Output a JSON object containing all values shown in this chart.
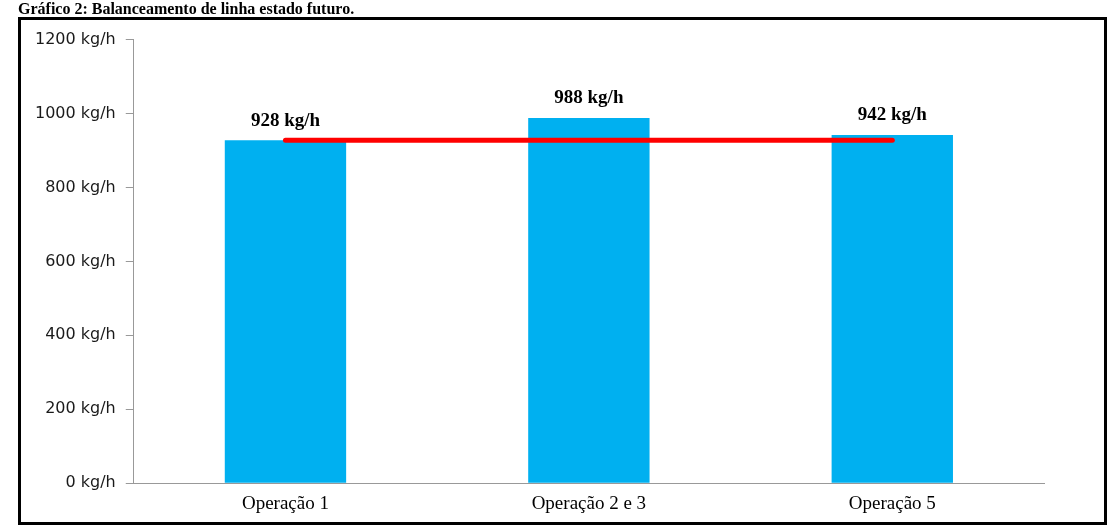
{
  "chart_data": {
    "type": "bar",
    "title": "Gráfico 2: Balanceamento de linha estado futuro.",
    "categories": [
      "Operação 1",
      "Operação 2 e 3",
      "Operação 5"
    ],
    "series": [
      {
        "color": "#00b0f0",
        "values": [
          928,
          988,
          942
        ],
        "value_labels": [
          "928 kg/h",
          "988 kg/h",
          "942 kg/h"
        ]
      },
      {
        "type": "line",
        "color": "#ff0000",
        "values": [
          928,
          928,
          928
        ]
      }
    ],
    "ylim": [
      0,
      1200
    ],
    "yticks": [
      {
        "value": 0,
        "label": "0 kg/h"
      },
      {
        "value": 200,
        "label": "200 kg/h"
      },
      {
        "value": 400,
        "label": "400 kg/h"
      },
      {
        "value": 600,
        "label": "600 kg/h"
      },
      {
        "value": 800,
        "label": "800 kg/h"
      },
      {
        "value": 1000,
        "label": "1000 kg/h"
      },
      {
        "value": 1200,
        "label": "1200 kg/h"
      }
    ],
    "grid": false,
    "legend": false,
    "marker": "none"
  }
}
